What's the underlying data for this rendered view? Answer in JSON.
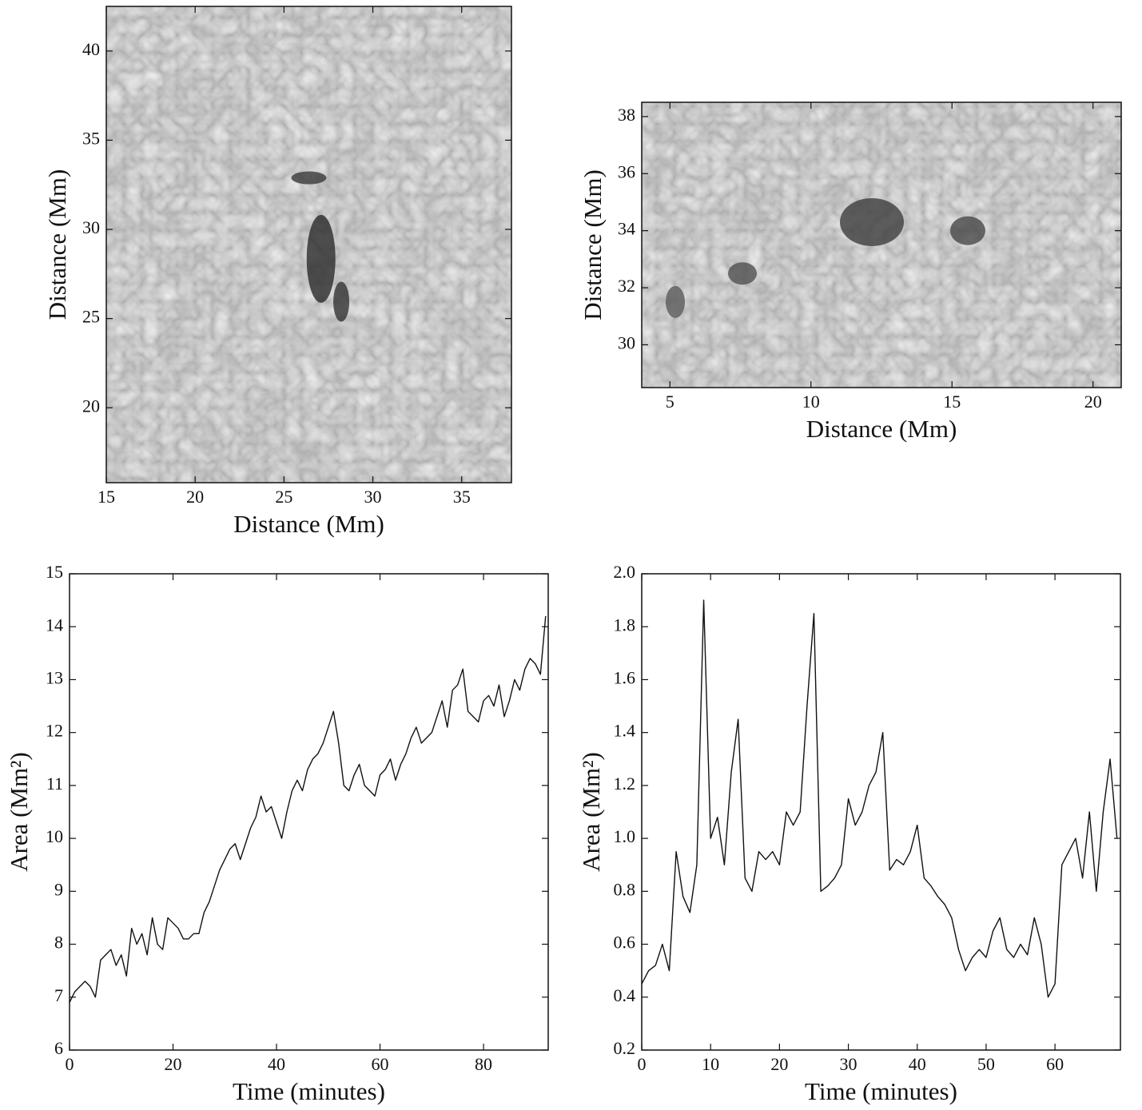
{
  "chart_data": [
    {
      "type": "image",
      "xlabel": "Distance (Mm)",
      "ylabel": "Distance (Mm)",
      "xlim": [
        15,
        37.8
      ],
      "ylim": [
        15.8,
        42.5
      ],
      "xticks": [
        15,
        20,
        25,
        30,
        35
      ],
      "yticks": [
        20,
        25,
        30,
        35,
        40
      ]
    },
    {
      "type": "image",
      "xlabel": "Distance (Mm)",
      "ylabel": "Distance (Mm)",
      "xlim": [
        4,
        21
      ],
      "ylim": [
        28.5,
        38.5
      ],
      "xticks": [
        5,
        10,
        15,
        20
      ],
      "yticks": [
        30,
        32,
        34,
        36,
        38
      ]
    },
    {
      "type": "line",
      "xlabel": "Time (minutes)",
      "ylabel": "Area (Mm²)",
      "color": "#111111",
      "xlim": [
        0,
        92.5
      ],
      "ylim": [
        6,
        15
      ],
      "xticks": [
        0,
        20,
        40,
        60,
        80
      ],
      "yticks": [
        6,
        7,
        8,
        9,
        10,
        11,
        12,
        13,
        14,
        15
      ],
      "x": [
        0,
        1,
        2,
        3,
        4,
        5,
        6,
        7,
        8,
        9,
        10,
        11,
        12,
        13,
        14,
        15,
        16,
        17,
        18,
        19,
        20,
        21,
        22,
        23,
        24,
        25,
        26,
        27,
        28,
        29,
        30,
        31,
        32,
        33,
        34,
        35,
        36,
        37,
        38,
        39,
        40,
        41,
        42,
        43,
        44,
        45,
        46,
        47,
        48,
        49,
        50,
        51,
        52,
        53,
        54,
        55,
        56,
        57,
        58,
        59,
        60,
        61,
        62,
        63,
        64,
        65,
        66,
        67,
        68,
        69,
        70,
        71,
        72,
        73,
        74,
        75,
        76,
        77,
        78,
        79,
        80,
        81,
        82,
        83,
        84,
        85,
        86,
        87,
        88,
        89,
        90,
        91,
        92
      ],
      "values": [
        6.9,
        7.1,
        7.2,
        7.3,
        7.2,
        7.0,
        7.7,
        7.8,
        7.9,
        7.6,
        7.8,
        7.4,
        8.3,
        8.0,
        8.2,
        7.8,
        8.5,
        8.0,
        7.9,
        8.5,
        8.4,
        8.3,
        8.1,
        8.1,
        8.2,
        8.2,
        8.6,
        8.8,
        9.1,
        9.4,
        9.6,
        9.8,
        9.9,
        9.6,
        9.9,
        10.2,
        10.4,
        10.8,
        10.5,
        10.6,
        10.3,
        10.0,
        10.5,
        10.9,
        11.1,
        10.9,
        11.3,
        11.5,
        11.6,
        11.8,
        12.1,
        12.4,
        11.8,
        11.0,
        10.9,
        11.2,
        11.4,
        11.0,
        10.9,
        10.8,
        11.2,
        11.3,
        11.5,
        11.1,
        11.4,
        11.6,
        11.9,
        12.1,
        11.8,
        11.9,
        12.0,
        12.3,
        12.6,
        12.1,
        12.8,
        12.9,
        13.2,
        12.4,
        12.3,
        12.2,
        12.6,
        12.7,
        12.5,
        12.9,
        12.3,
        12.6,
        13.0,
        12.8,
        13.2,
        13.4,
        13.3,
        13.1,
        14.2
      ]
    },
    {
      "type": "line",
      "xlabel": "Time (minutes)",
      "ylabel": "Area (Mm²)",
      "color": "#111111",
      "xlim": [
        0,
        69.5
      ],
      "ylim": [
        0.2,
        2.0
      ],
      "xticks": [
        0,
        10,
        20,
        30,
        40,
        50,
        60
      ],
      "yticks": [
        0.2,
        0.4,
        0.6,
        0.8,
        {
          "value": 1,
          "label": "1.0"
        },
        1.2,
        1.4,
        1.6,
        1.8,
        {
          "value": 2,
          "label": "2.0"
        }
      ],
      "x": [
        0,
        1,
        2,
        3,
        4,
        5,
        6,
        7,
        8,
        9,
        10,
        11,
        12,
        13,
        14,
        15,
        16,
        17,
        18,
        19,
        20,
        21,
        22,
        23,
        24,
        25,
        26,
        27,
        28,
        29,
        30,
        31,
        32,
        33,
        34,
        35,
        36,
        37,
        38,
        39,
        40,
        41,
        42,
        43,
        44,
        45,
        46,
        47,
        48,
        49,
        50,
        51,
        52,
        53,
        54,
        55,
        56,
        57,
        58,
        59,
        60,
        61,
        62,
        63,
        64,
        65,
        66,
        67,
        68,
        69
      ],
      "values": [
        0.45,
        0.5,
        0.52,
        0.6,
        0.5,
        0.95,
        0.78,
        0.72,
        0.9,
        1.9,
        1.0,
        1.08,
        0.9,
        1.25,
        1.45,
        0.85,
        0.8,
        0.95,
        0.92,
        0.95,
        0.9,
        1.1,
        1.05,
        1.1,
        1.5,
        1.85,
        0.8,
        0.82,
        0.85,
        0.9,
        1.15,
        1.05,
        1.1,
        1.2,
        1.25,
        1.4,
        0.88,
        0.92,
        0.9,
        0.95,
        1.05,
        0.85,
        0.82,
        0.78,
        0.75,
        0.7,
        0.58,
        0.5,
        0.55,
        0.58,
        0.55,
        0.65,
        0.7,
        0.58,
        0.55,
        0.6,
        0.56,
        0.7,
        0.6,
        0.4,
        0.45,
        0.9,
        0.95,
        1.0,
        0.85,
        1.1,
        0.8,
        1.1,
        1.3,
        1.0
      ]
    }
  ]
}
